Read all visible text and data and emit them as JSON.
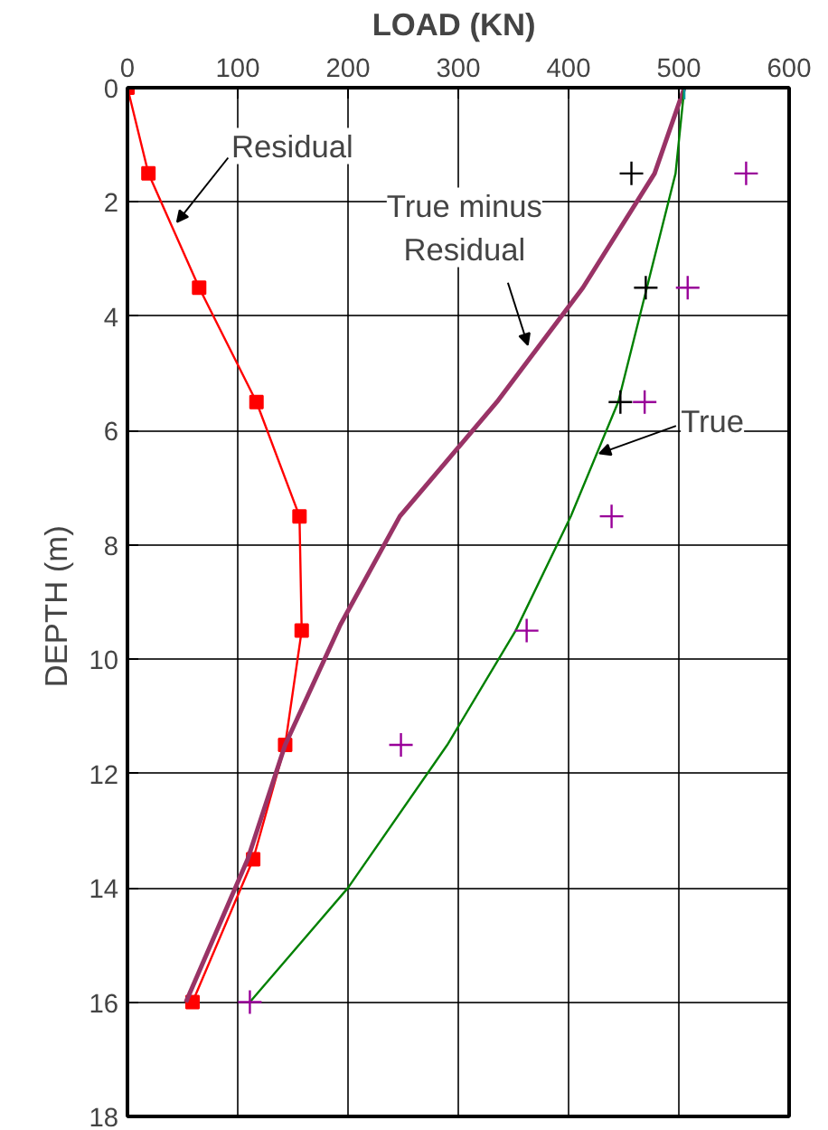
{
  "chart_data": {
    "type": "line",
    "xlabel": "LOAD  (KN)",
    "ylabel": "DEPTH  (m)",
    "xlim": [
      0,
      600
    ],
    "xticks": [
      0,
      100,
      200,
      300,
      400,
      500,
      600
    ],
    "ylim": [
      18,
      0
    ],
    "yticks": [
      0,
      2,
      4,
      6,
      8,
      10,
      12,
      14,
      16,
      18
    ],
    "grid": true,
    "series": [
      {
        "color": "#ff0000",
        "marker": "square",
        "x": [
          0,
          19,
          65,
          117,
          156,
          158,
          143,
          114,
          59
        ],
        "values": [
          0,
          1.5,
          3.5,
          5.5,
          7.5,
          9.5,
          11.5,
          13.5,
          16
        ]
      },
      {
        "color": "#993366",
        "marker": "none",
        "x": [
          505,
          478,
          413,
          335,
          247,
          193,
          143,
          109,
          53
        ],
        "values": [
          0,
          1.5,
          3.5,
          5.5,
          7.5,
          9.4,
          11.5,
          13.5,
          16
        ]
      },
      {
        "color": "#008000",
        "marker": "none",
        "x": [
          505,
          497,
          471,
          445,
          402,
          352,
          290,
          200,
          111
        ],
        "values": [
          0,
          1.5,
          3.5,
          5.5,
          7.5,
          9.5,
          11.5,
          14,
          16
        ]
      },
      {
        "type": "scatter",
        "color": "#000000",
        "marker": "cross",
        "x": [
          457,
          470,
          447
        ],
        "values": [
          1.5,
          3.5,
          5.5
        ]
      },
      {
        "type": "scatter",
        "color": "#990099",
        "marker": "cross",
        "x": [
          561,
          508,
          469,
          439,
          362,
          248,
          111
        ],
        "values": [
          1.5,
          3.5,
          5.5,
          7.5,
          9.5,
          11.5,
          16
        ]
      },
      {
        "type": "scatter",
        "color": "#009999",
        "marker": "cross",
        "x": [
          505
        ],
        "values": [
          0
        ]
      }
    ],
    "annotations": [
      {
        "text": "Residual",
        "x": 45,
        "y": 2.35
      },
      {
        "text": "True minus\nResidual",
        "x": 363,
        "y": 4.5
      },
      {
        "text": "True",
        "x": 428,
        "y": 6.4
      }
    ]
  }
}
